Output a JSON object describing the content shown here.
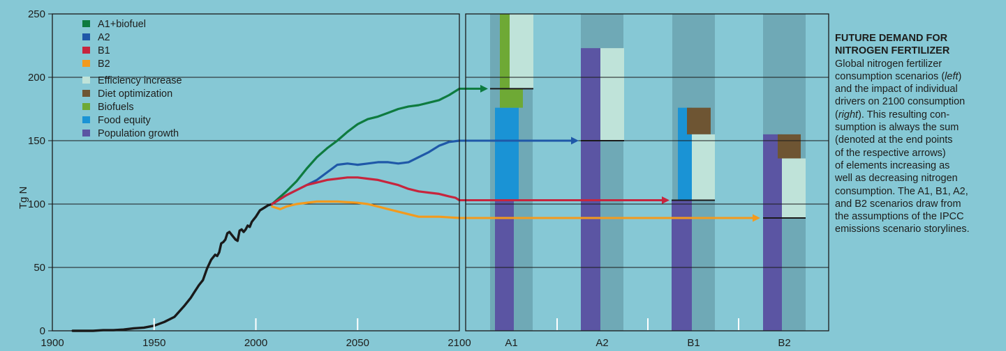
{
  "chart_data": [
    {
      "type": "line",
      "ylabel": "Tg N",
      "xlim": [
        1900,
        2100
      ],
      "ylim": [
        0,
        250
      ],
      "x_ticks": [
        1900,
        1950,
        2000,
        2050,
        2100
      ],
      "y_ticks": [
        0,
        50,
        100,
        150,
        200,
        250
      ],
      "grid": "horizontal",
      "legend": "top-left",
      "series": [
        {
          "name": "historical",
          "color": "#1a1a1a",
          "x": [
            1910,
            1920,
            1925,
            1930,
            1935,
            1940,
            1945,
            1950,
            1955,
            1960,
            1965,
            1968,
            1970,
            1972,
            1974,
            1976,
            1978,
            1980,
            1981,
            1982,
            1983,
            1984,
            1985,
            1986,
            1987,
            1988,
            1989,
            1990,
            1991,
            1992,
            1993,
            1994,
            1995,
            1996,
            1997,
            1998,
            1999,
            2000,
            2002,
            2004,
            2006,
            2008
          ],
          "y": [
            0,
            0,
            0.5,
            0.5,
            1,
            2,
            2.5,
            4,
            7,
            11,
            20,
            26,
            31,
            36,
            40,
            49,
            56,
            60,
            59,
            62,
            69,
            70,
            72,
            77,
            78,
            76,
            74,
            72,
            71,
            79,
            80,
            78,
            80,
            83,
            82,
            86,
            88,
            90,
            95,
            97,
            99,
            100
          ]
        },
        {
          "name": "A1+biofuel",
          "color": "#0e7b3f",
          "x": [
            2008,
            2015,
            2020,
            2025,
            2030,
            2035,
            2040,
            2045,
            2050,
            2055,
            2060,
            2065,
            2070,
            2075,
            2080,
            2085,
            2090,
            2095,
            2100
          ],
          "y": [
            100,
            110,
            118,
            128,
            137,
            144,
            150,
            157,
            163,
            167,
            169,
            172,
            175,
            177,
            178,
            180,
            182,
            186,
            191
          ]
        },
        {
          "name": "A2",
          "color": "#1f58a8",
          "x": [
            2008,
            2015,
            2020,
            2025,
            2030,
            2035,
            2040,
            2045,
            2050,
            2055,
            2060,
            2065,
            2070,
            2075,
            2080,
            2085,
            2090,
            2095,
            2100
          ],
          "y": [
            100,
            107,
            111,
            115,
            119,
            125,
            131,
            132,
            131,
            132,
            133,
            133,
            132,
            133,
            137,
            141,
            146,
            149,
            150
          ]
        },
        {
          "name": "B1",
          "color": "#c7253d",
          "x": [
            2008,
            2015,
            2020,
            2025,
            2030,
            2035,
            2040,
            2045,
            2050,
            2055,
            2060,
            2065,
            2070,
            2075,
            2080,
            2085,
            2090,
            2095,
            2098,
            2100
          ],
          "y": [
            100,
            107,
            111,
            115,
            117,
            119,
            120,
            121,
            121,
            120,
            119,
            117,
            115,
            112,
            110,
            109,
            108,
            106,
            105,
            103
          ]
        },
        {
          "name": "B2",
          "color": "#f39a1d",
          "x": [
            2008,
            2012,
            2015,
            2020,
            2030,
            2040,
            2050,
            2055,
            2060,
            2065,
            2070,
            2075,
            2080,
            2090,
            2100
          ],
          "y": [
            98,
            96,
            98,
            100,
            102,
            102,
            101,
            100,
            98,
            96,
            94,
            92,
            90,
            90,
            89
          ]
        }
      ],
      "legend_entries": [
        {
          "label": "A1+biofuel",
          "color": "#0e7b3f"
        },
        {
          "label": "A2",
          "color": "#1f58a8"
        },
        {
          "label": "B1",
          "color": "#c7253d"
        },
        {
          "label": "B2",
          "color": "#f39a1d"
        },
        {
          "label": "Efficiency increase",
          "color": "#bfe3d9"
        },
        {
          "label": "Diet optimization",
          "color": "#6e5533"
        },
        {
          "label": "Biofuels",
          "color": "#6ea935"
        },
        {
          "label": "Food equity",
          "color": "#1a93d5"
        },
        {
          "label": "Population growth",
          "color": "#5b55a3"
        }
      ]
    },
    {
      "type": "bar",
      "categories": [
        "A1",
        "A2",
        "B1",
        "B2"
      ],
      "ylim": [
        0,
        250
      ],
      "scenario_colors": [
        "#0e7b3f",
        "#1f58a8",
        "#c7253d",
        "#f39a1d"
      ],
      "consumption_2100": [
        191,
        150,
        103,
        89
      ],
      "components": [
        {
          "category": "A1",
          "segments": [
            {
              "driver": "Population growth",
              "from": 0,
              "to": 103,
              "color": "#5b55a3"
            },
            {
              "driver": "Food equity",
              "from": 103,
              "to": 176,
              "color": "#1a93d5"
            },
            {
              "driver": "Biofuels",
              "from": 176,
              "to": 250,
              "color": "#6ea935"
            },
            {
              "driver": "Efficiency increase",
              "from": 191,
              "to": 250,
              "color": "#bfe3d9"
            }
          ]
        },
        {
          "category": "A2",
          "segments": [
            {
              "driver": "Population growth",
              "from": 0,
              "to": 223,
              "color": "#5b55a3"
            },
            {
              "driver": "Efficiency increase",
              "from": 150,
              "to": 223,
              "color": "#bfe3d9"
            }
          ]
        },
        {
          "category": "B1",
          "segments": [
            {
              "driver": "Population growth",
              "from": 0,
              "to": 103,
              "color": "#5b55a3"
            },
            {
              "driver": "Food equity",
              "from": 103,
              "to": 176,
              "color": "#1a93d5"
            },
            {
              "driver": "Diet optimization",
              "from": 155,
              "to": 176,
              "color": "#6e5533"
            },
            {
              "driver": "Efficiency increase",
              "from": 103,
              "to": 155,
              "color": "#bfe3d9"
            }
          ]
        },
        {
          "category": "B2",
          "segments": [
            {
              "driver": "Population growth",
              "from": 0,
              "to": 155,
              "color": "#5b55a3"
            },
            {
              "driver": "Diet optimization",
              "from": 136,
              "to": 155,
              "color": "#6e5533"
            },
            {
              "driver": "Efficiency increase",
              "from": 89,
              "to": 136,
              "color": "#bfe3d9"
            }
          ]
        }
      ]
    }
  ],
  "caption": {
    "title_line1": "FUTURE DEMAND FOR",
    "title_line2": "NITROGEN FERTILIZER",
    "l1": "Global nitrogen fertilizer",
    "l2a": "consumption scenarios (",
    "l2b": "left",
    "l2c": ")",
    "l3": "and the impact of individual",
    "l4": "drivers on 2100 consumption",
    "l5a": "(",
    "l5b": "right",
    "l5c": "). This resulting con-",
    "l6": "sumption is always the sum",
    "l7": "(denoted at the end points",
    "l8": "of the respective arrows)",
    "l9": "of elements increasing as",
    "l10": "well as decreasing nitrogen",
    "l11": "consumption. The A1, B1, A2,",
    "l12": "and B2 scenarios draw from",
    "l13": "the assumptions of the IPCC",
    "l14": "emissions scenario storylines."
  }
}
